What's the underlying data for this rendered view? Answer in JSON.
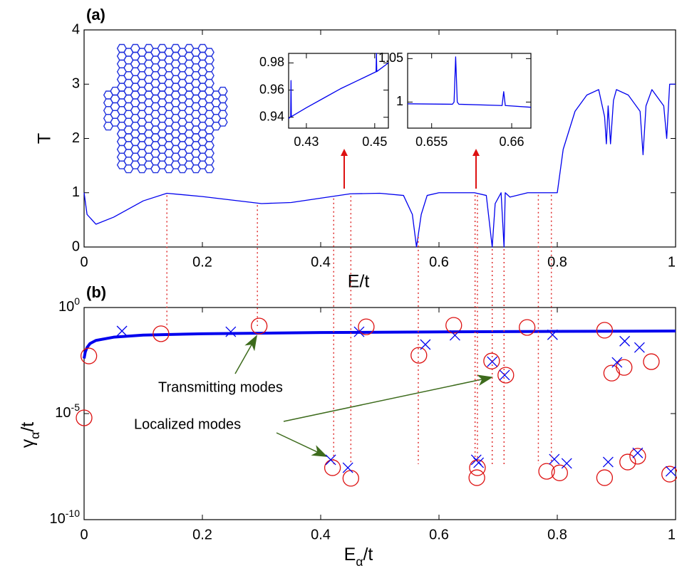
{
  "chart_data": [
    {
      "type": "line",
      "title": "(a)",
      "xlabel": "E/t",
      "ylabel": "T",
      "xlim": [
        0,
        1
      ],
      "ylim": [
        0,
        4
      ],
      "xticks": [
        0,
        0.2,
        0.4,
        0.6,
        0.8,
        1
      ],
      "yticks": [
        0,
        1,
        2,
        3,
        4
      ],
      "series": [
        {
          "color": "#0000ee",
          "x": [
            0,
            0.005,
            0.02,
            0.05,
            0.1,
            0.14,
            0.2,
            0.3,
            0.35,
            0.4,
            0.45,
            0.5,
            0.54,
            0.555,
            0.562,
            0.57,
            0.58,
            0.6,
            0.66,
            0.68,
            0.69,
            0.695,
            0.7,
            0.705,
            0.71,
            0.712,
            0.72,
            0.75,
            0.8,
            0.81,
            0.83,
            0.85,
            0.87,
            0.88,
            0.883,
            0.886,
            0.89,
            0.895,
            0.9,
            0.92,
            0.94,
            0.945,
            0.95,
            0.96,
            0.98,
            0.985,
            0.99,
            1
          ],
          "values": [
            1.0,
            0.6,
            0.42,
            0.55,
            0.85,
            0.99,
            0.93,
            0.8,
            0.82,
            0.9,
            0.98,
            0.99,
            0.95,
            0.6,
            0.0,
            0.6,
            0.95,
            1.0,
            1.0,
            0.95,
            0.0,
            0.8,
            0.9,
            1.0,
            0.0,
            1.0,
            0.92,
            1.0,
            1.0,
            1.8,
            2.5,
            2.8,
            2.9,
            2.4,
            1.9,
            2.6,
            1.9,
            2.7,
            2.9,
            2.8,
            2.5,
            1.7,
            2.6,
            2.9,
            2.6,
            2.0,
            3.0,
            3.0
          ]
        }
      ]
    },
    {
      "type": "line",
      "xlim": [
        0.4248,
        0.454
      ],
      "ylim": [
        0.932,
        0.987
      ],
      "xticks": [
        0.43,
        0.45
      ],
      "yticks": [
        0.94,
        0.96,
        0.98
      ],
      "series": [
        {
          "color": "#0000ee",
          "x": [
            0.4248,
            0.4254,
            0.4255,
            0.4256,
            0.43,
            0.435,
            0.44,
            0.445,
            0.4504,
            0.4505,
            0.4506,
            0.454
          ],
          "values": [
            0.939,
            0.9405,
            0.967,
            0.9405,
            0.947,
            0.954,
            0.961,
            0.967,
            0.9735,
            0.987,
            0.9736,
            0.98
          ]
        }
      ]
    },
    {
      "type": "line",
      "xlim": [
        0.6535,
        0.6612
      ],
      "ylim": [
        0.97,
        1.056
      ],
      "xticks": [
        0.655,
        0.66
      ],
      "yticks": [
        1,
        1.05
      ],
      "series": [
        {
          "color": "#0000ee",
          "x": [
            0.6535,
            0.6563,
            0.6564,
            0.6565,
            0.6566,
            0.6567,
            0.6594,
            0.6595,
            0.6596,
            0.6612
          ],
          "values": [
            0.998,
            0.9975,
            1.0,
            1.052,
            1.0,
            0.9975,
            0.996,
            1.012,
            0.996,
            0.994
          ]
        }
      ]
    },
    {
      "type": "scatter",
      "title": "(b)",
      "xlabel": "E_α/t",
      "ylabel": "γ_α/t",
      "log": true,
      "xlim": [
        0,
        1
      ],
      "ylim": [
        1e-10,
        1
      ],
      "xticks": [
        0,
        0.2,
        0.4,
        0.6,
        0.8,
        1
      ],
      "yticks": [
        {
          "value": 1,
          "label": "10^0"
        },
        {
          "value": 1e-05,
          "label": "10^-5"
        },
        {
          "value": 1e-10,
          "label": "10^-10"
        }
      ],
      "annotations": [
        "Transmitting modes",
        "Localized modes"
      ],
      "annotation_color": "#3d6b1c",
      "guides_x": [
        0.14,
        0.293,
        0.422,
        0.451,
        0.565,
        0.661,
        0.665,
        0.69,
        0.71,
        0.768,
        0.79
      ],
      "guide_color": "#e03030",
      "series": [
        {
          "color": "#0000ee",
          "marker": "none",
          "x": [
            0,
            0.002,
            0.005,
            0.01,
            0.02,
            0.05,
            0.1,
            0.2,
            0.4,
            0.6,
            0.8,
            1
          ],
          "values": [
            0.004,
            0.008,
            0.013,
            0.02,
            0.028,
            0.04,
            0.05,
            0.058,
            0.066,
            0.071,
            0.075,
            0.078
          ]
        },
        {
          "color": "#dd1111",
          "marker": "o",
          "x": [
            0.008,
            0,
            0.13,
            0.296,
            0.42,
            0.451,
            0.477,
            0.566,
            0.625,
            0.665,
            0.664,
            0.689,
            0.713,
            0.749,
            0.782,
            0.804,
            0.88,
            0.88,
            0.892,
            0.913,
            0.919,
            0.936,
            0.959,
            0.99
          ],
          "values": [
            0.0052,
            6.3e-06,
            0.058,
            0.134,
            2.8e-08,
            8.9e-09,
            0.123,
            0.0056,
            0.145,
            2.8e-08,
            9.5e-09,
            0.003,
            0.00065,
            0.115,
            1.9e-08,
            1.6e-08,
            0.085,
            9.5e-09,
            0.00081,
            0.0015,
            5.2e-08,
            9.8e-08,
            0.0028,
            1.4e-08
          ]
        },
        {
          "color": "#0000ee",
          "marker": "x",
          "x": [
            0.064,
            0.248,
            0.465,
            0.417,
            0.446,
            0.577,
            0.627,
            0.663,
            0.667,
            0.69,
            0.711,
            0.792,
            0.795,
            0.816,
            0.886,
            0.901,
            0.914,
            0.939,
            0.936,
            0.992
          ],
          "values": [
            0.078,
            0.072,
            0.072,
            6.6e-08,
            2.8e-08,
            0.018,
            0.049,
            6.6e-08,
            4.8e-08,
            0.0028,
            0.00065,
            0.052,
            7.1e-08,
            4.5e-08,
            5.2e-08,
            0.0026,
            0.026,
            0.013,
            1.4e-07,
            1.9e-08
          ]
        }
      ]
    }
  ]
}
